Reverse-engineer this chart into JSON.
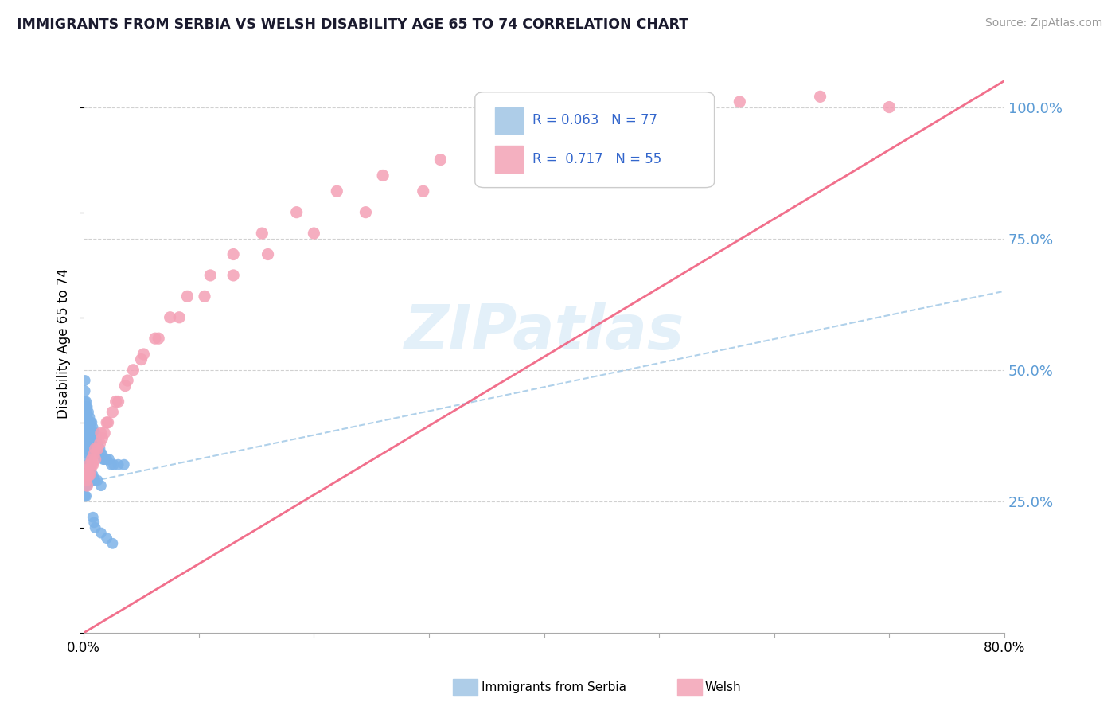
{
  "title": "IMMIGRANTS FROM SERBIA VS WELSH DISABILITY AGE 65 TO 74 CORRELATION CHART",
  "source_text": "Source: ZipAtlas.com",
  "ylabel": "Disability Age 65 to 74",
  "watermark_text": "ZIPatlas",
  "serbia_color": "#7eb3e8",
  "welsh_color": "#f4a0b5",
  "serbia_trend_color": "#a8cce8",
  "welsh_trend_color": "#f06080",
  "right_ytick_labels": [
    "25.0%",
    "50.0%",
    "75.0%",
    "100.0%"
  ],
  "right_ytick_color": "#5b9bd5",
  "legend_items": [
    {
      "color": "#aecde8",
      "r": "R = 0.063",
      "n": "N = 77"
    },
    {
      "color": "#f4b0c0",
      "r": "R =  0.717",
      "n": "N = 55"
    }
  ],
  "bottom_legend": [
    {
      "label": "Immigrants from Serbia",
      "color": "#aecde8"
    },
    {
      "label": "Welsh",
      "color": "#f4b0c0"
    }
  ],
  "serbia_x": [
    0.001,
    0.001,
    0.001,
    0.001,
    0.001,
    0.002,
    0.002,
    0.002,
    0.002,
    0.002,
    0.002,
    0.002,
    0.003,
    0.003,
    0.003,
    0.003,
    0.003,
    0.003,
    0.004,
    0.004,
    0.004,
    0.004,
    0.004,
    0.005,
    0.005,
    0.005,
    0.005,
    0.006,
    0.006,
    0.006,
    0.007,
    0.007,
    0.007,
    0.008,
    0.008,
    0.009,
    0.009,
    0.01,
    0.01,
    0.011,
    0.011,
    0.012,
    0.013,
    0.014,
    0.015,
    0.016,
    0.017,
    0.018,
    0.02,
    0.022,
    0.024,
    0.026,
    0.03,
    0.035,
    0.001,
    0.001,
    0.002,
    0.002,
    0.002,
    0.003,
    0.003,
    0.004,
    0.004,
    0.005,
    0.006,
    0.007,
    0.008,
    0.009,
    0.01,
    0.012,
    0.015,
    0.008,
    0.009,
    0.01,
    0.015,
    0.02,
    0.025
  ],
  "serbia_y": [
    0.42,
    0.44,
    0.46,
    0.48,
    0.4,
    0.42,
    0.44,
    0.43,
    0.41,
    0.39,
    0.37,
    0.35,
    0.43,
    0.41,
    0.39,
    0.37,
    0.35,
    0.33,
    0.42,
    0.4,
    0.38,
    0.36,
    0.34,
    0.41,
    0.39,
    0.37,
    0.35,
    0.4,
    0.38,
    0.36,
    0.4,
    0.38,
    0.36,
    0.39,
    0.37,
    0.38,
    0.36,
    0.38,
    0.36,
    0.37,
    0.35,
    0.36,
    0.35,
    0.35,
    0.34,
    0.34,
    0.33,
    0.33,
    0.33,
    0.33,
    0.32,
    0.32,
    0.32,
    0.32,
    0.28,
    0.26,
    0.3,
    0.28,
    0.26,
    0.3,
    0.28,
    0.32,
    0.3,
    0.31,
    0.31,
    0.3,
    0.3,
    0.29,
    0.29,
    0.29,
    0.28,
    0.22,
    0.21,
    0.2,
    0.19,
    0.18,
    0.17
  ],
  "welsh_x": [
    0.001,
    0.002,
    0.003,
    0.004,
    0.005,
    0.006,
    0.007,
    0.008,
    0.009,
    0.01,
    0.012,
    0.014,
    0.016,
    0.018,
    0.021,
    0.025,
    0.03,
    0.036,
    0.043,
    0.052,
    0.062,
    0.075,
    0.09,
    0.11,
    0.13,
    0.155,
    0.185,
    0.22,
    0.26,
    0.31,
    0.37,
    0.43,
    0.5,
    0.57,
    0.64,
    0.7,
    0.003,
    0.005,
    0.007,
    0.01,
    0.015,
    0.02,
    0.028,
    0.038,
    0.05,
    0.065,
    0.083,
    0.105,
    0.13,
    0.16,
    0.2,
    0.245,
    0.295,
    0.35,
    0.41
  ],
  "welsh_y": [
    0.3,
    0.29,
    0.31,
    0.3,
    0.32,
    0.31,
    0.33,
    0.32,
    0.34,
    0.33,
    0.35,
    0.36,
    0.37,
    0.38,
    0.4,
    0.42,
    0.44,
    0.47,
    0.5,
    0.53,
    0.56,
    0.6,
    0.64,
    0.68,
    0.72,
    0.76,
    0.8,
    0.84,
    0.87,
    0.9,
    0.93,
    0.96,
    0.99,
    1.01,
    1.02,
    1.0,
    0.28,
    0.3,
    0.32,
    0.35,
    0.38,
    0.4,
    0.44,
    0.48,
    0.52,
    0.56,
    0.6,
    0.64,
    0.68,
    0.72,
    0.76,
    0.8,
    0.84,
    0.88,
    0.91
  ],
  "serbia_trend_x": [
    0.0,
    0.8
  ],
  "serbia_trend_y": [
    0.285,
    0.65
  ],
  "welsh_trend_x": [
    0.0,
    0.8
  ],
  "welsh_trend_y": [
    0.0,
    1.05
  ],
  "xmin": 0.0,
  "xmax": 0.8,
  "ymin": 0.0,
  "ymax": 1.1
}
